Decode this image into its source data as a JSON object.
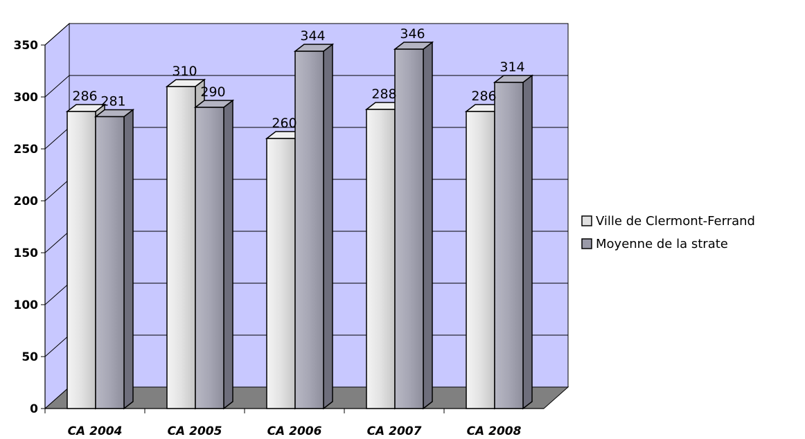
{
  "chart_data": {
    "type": "bar",
    "categories": [
      "CA 2004",
      "CA 2005",
      "CA 2006",
      "CA 2007",
      "CA 2008"
    ],
    "series": [
      {
        "name": "Ville de Clermont-Ferrand",
        "values": [
          286,
          310,
          260,
          288,
          286
        ]
      },
      {
        "name": "Moyenne de la strate",
        "values": [
          281,
          290,
          344,
          346,
          314
        ]
      }
    ],
    "yticks": [
      "0",
      "50",
      "100",
      "150",
      "200",
      "250",
      "300",
      "350"
    ],
    "ylim": [
      0,
      350
    ],
    "grid": true,
    "legend_position": "right",
    "colors": {
      "wall": "#c8c8ff",
      "floor": "#808080",
      "gridline": "#000000",
      "series1": "#e0e0e0",
      "series2": "#9a9aa8"
    }
  }
}
